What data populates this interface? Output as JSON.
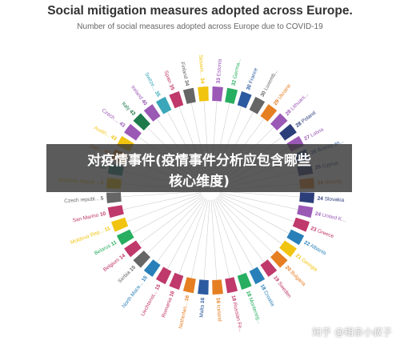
{
  "overlay": {
    "line1": "对疫情事件(疫情事件分析应包含哪些",
    "line2": "核心维度)"
  },
  "watermark": "知乎 @相亲小叔子",
  "chart_data": {
    "type": "radial-bar",
    "title": "Social mitigation measures adopted across Europe.",
    "subtitle": "Number of social measures adopted across Europe due to COVID-19",
    "items": [
      {
        "label": "Estonia",
        "value": 33,
        "color": "#9b59b6"
      },
      {
        "label": "Germa...",
        "value": 32,
        "color": "#27ae60"
      },
      {
        "label": "France",
        "value": 30,
        "color": "#2c5aa0"
      },
      {
        "label": "Luxemb...",
        "value": 30,
        "color": "#666666"
      },
      {
        "label": "Ukraine",
        "value": 29,
        "color": "#e67e22"
      },
      {
        "label": "Lithuani...",
        "value": 28,
        "color": "#9b59b6"
      },
      {
        "label": "Poland",
        "value": 28,
        "color": "#2c3e7a"
      },
      {
        "label": "Latvia",
        "value": 27,
        "color": "#9b59b6"
      },
      {
        "label": "Bosnia an...",
        "value": 26,
        "color": "#2c5aa0"
      },
      {
        "label": "Cyprus",
        "value": 25,
        "color": "#2c3e7a"
      },
      {
        "label": "Norway",
        "value": 24,
        "color": "#e67e22"
      },
      {
        "label": "Slovakia",
        "value": 24,
        "color": "#2c3e7a"
      },
      {
        "label": "United K...",
        "value": 24,
        "color": "#9b59b6"
      },
      {
        "label": "Greece",
        "value": 23,
        "color": "#c0396b"
      },
      {
        "label": "Albania",
        "value": 22,
        "color": "#2980b9"
      },
      {
        "label": "Georgia",
        "value": 21,
        "color": "#f1c40f"
      },
      {
        "label": "Bulgaria",
        "value": 20,
        "color": "#e67e22"
      },
      {
        "label": "Sweden",
        "value": 19,
        "color": "#c0396b"
      },
      {
        "label": "Croatia",
        "value": 18,
        "color": "#2980b9"
      },
      {
        "label": "Monteneg...",
        "value": 18,
        "color": "#27ae60"
      },
      {
        "label": "Russian Fe...",
        "value": 18,
        "color": "#c0396b"
      },
      {
        "label": "Iceland",
        "value": 16,
        "color": "#e67e22"
      },
      {
        "label": "Malta",
        "value": 16,
        "color": "#2c5aa0"
      },
      {
        "label": "Netherlan...",
        "value": 16,
        "color": "#e67e22"
      },
      {
        "label": "Romania",
        "value": 16,
        "color": "#c0396b"
      },
      {
        "label": "Liechtenst...",
        "value": 15,
        "color": "#c0396b"
      },
      {
        "label": "North Mace...",
        "value": 15,
        "color": "#2980b9"
      },
      {
        "label": "Serbia",
        "value": 15,
        "color": "#666666"
      },
      {
        "label": "Belgium",
        "value": 14,
        "color": "#c0396b"
      },
      {
        "label": "Belarus",
        "value": 11,
        "color": "#27ae60"
      },
      {
        "label": "Moldova Rep...",
        "value": 11,
        "color": "#f1c40f"
      },
      {
        "label": "San Marino",
        "value": 10,
        "color": "#c0396b"
      },
      {
        "label": "Czech republ...",
        "value": 5,
        "color": "#666666"
      },
      {
        "label": "Moldova Repub...",
        "value": 3,
        "color": "#f1c40f"
      },
      {
        "label": "Hu...",
        "value": 55,
        "color": "#2a8a82"
      },
      {
        "label": "Den...",
        "value": 44,
        "color": "#e67e22"
      },
      {
        "label": "Austri...",
        "value": 43,
        "color": "#f1c40f"
      },
      {
        "label": "Czech ...",
        "value": 43,
        "color": "#9b59b6"
      },
      {
        "label": "Italy",
        "value": 43,
        "color": "#1e7a4a"
      },
      {
        "label": "Ireland",
        "value": 40,
        "color": "#9b59b6"
      },
      {
        "label": "Switze...",
        "value": 35,
        "color": "#3aa6b9"
      },
      {
        "label": "Spain",
        "value": 35,
        "color": "#c0396b"
      },
      {
        "label": "Finland",
        "value": 34,
        "color": "#666666"
      },
      {
        "label": "Sloveni...",
        "value": 34,
        "color": "#f1c40f"
      }
    ]
  }
}
